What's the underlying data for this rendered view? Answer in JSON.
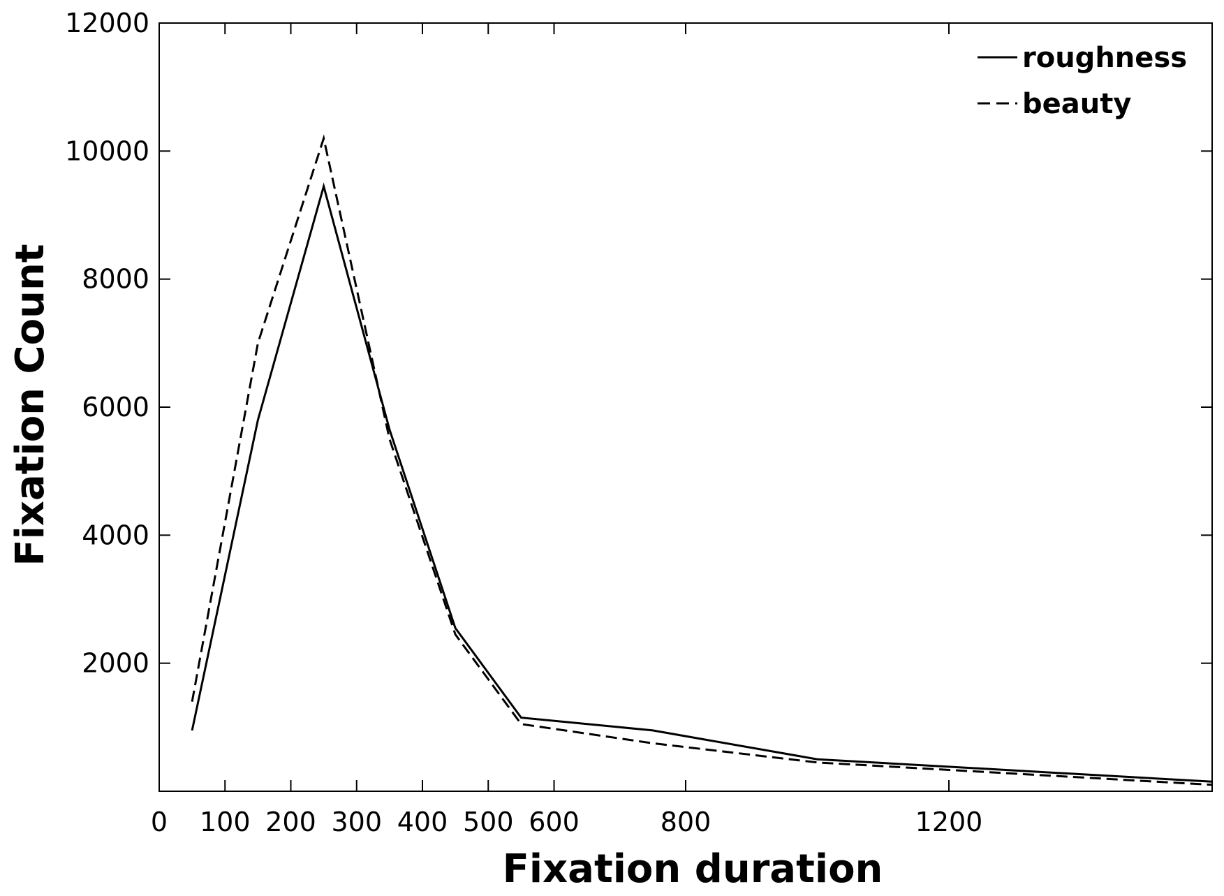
{
  "chart_data": {
    "type": "line",
    "title": "",
    "xlabel": "Fixation duration",
    "ylabel": "Fixation Count",
    "xlim": [
      0,
      1600
    ],
    "ylim": [
      0,
      12000
    ],
    "x_ticks": [
      0,
      100,
      200,
      300,
      400,
      500,
      600,
      800,
      1200
    ],
    "y_ticks": [
      2000,
      4000,
      6000,
      8000,
      10000,
      12000
    ],
    "grid": false,
    "legend_position": "top-right",
    "series": [
      {
        "name": "roughness",
        "style": "solid",
        "color": "#000000",
        "x": [
          50,
          150,
          250,
          350,
          450,
          550,
          750,
          1000,
          1600
        ],
        "y": [
          950,
          5800,
          9450,
          5650,
          2550,
          1150,
          950,
          500,
          150
        ]
      },
      {
        "name": "beauty",
        "style": "dashed",
        "color": "#000000",
        "x": [
          50,
          150,
          250,
          350,
          450,
          550,
          750,
          1000,
          1600
        ],
        "y": [
          1400,
          7000,
          10200,
          5500,
          2450,
          1050,
          750,
          450,
          100
        ]
      }
    ]
  }
}
